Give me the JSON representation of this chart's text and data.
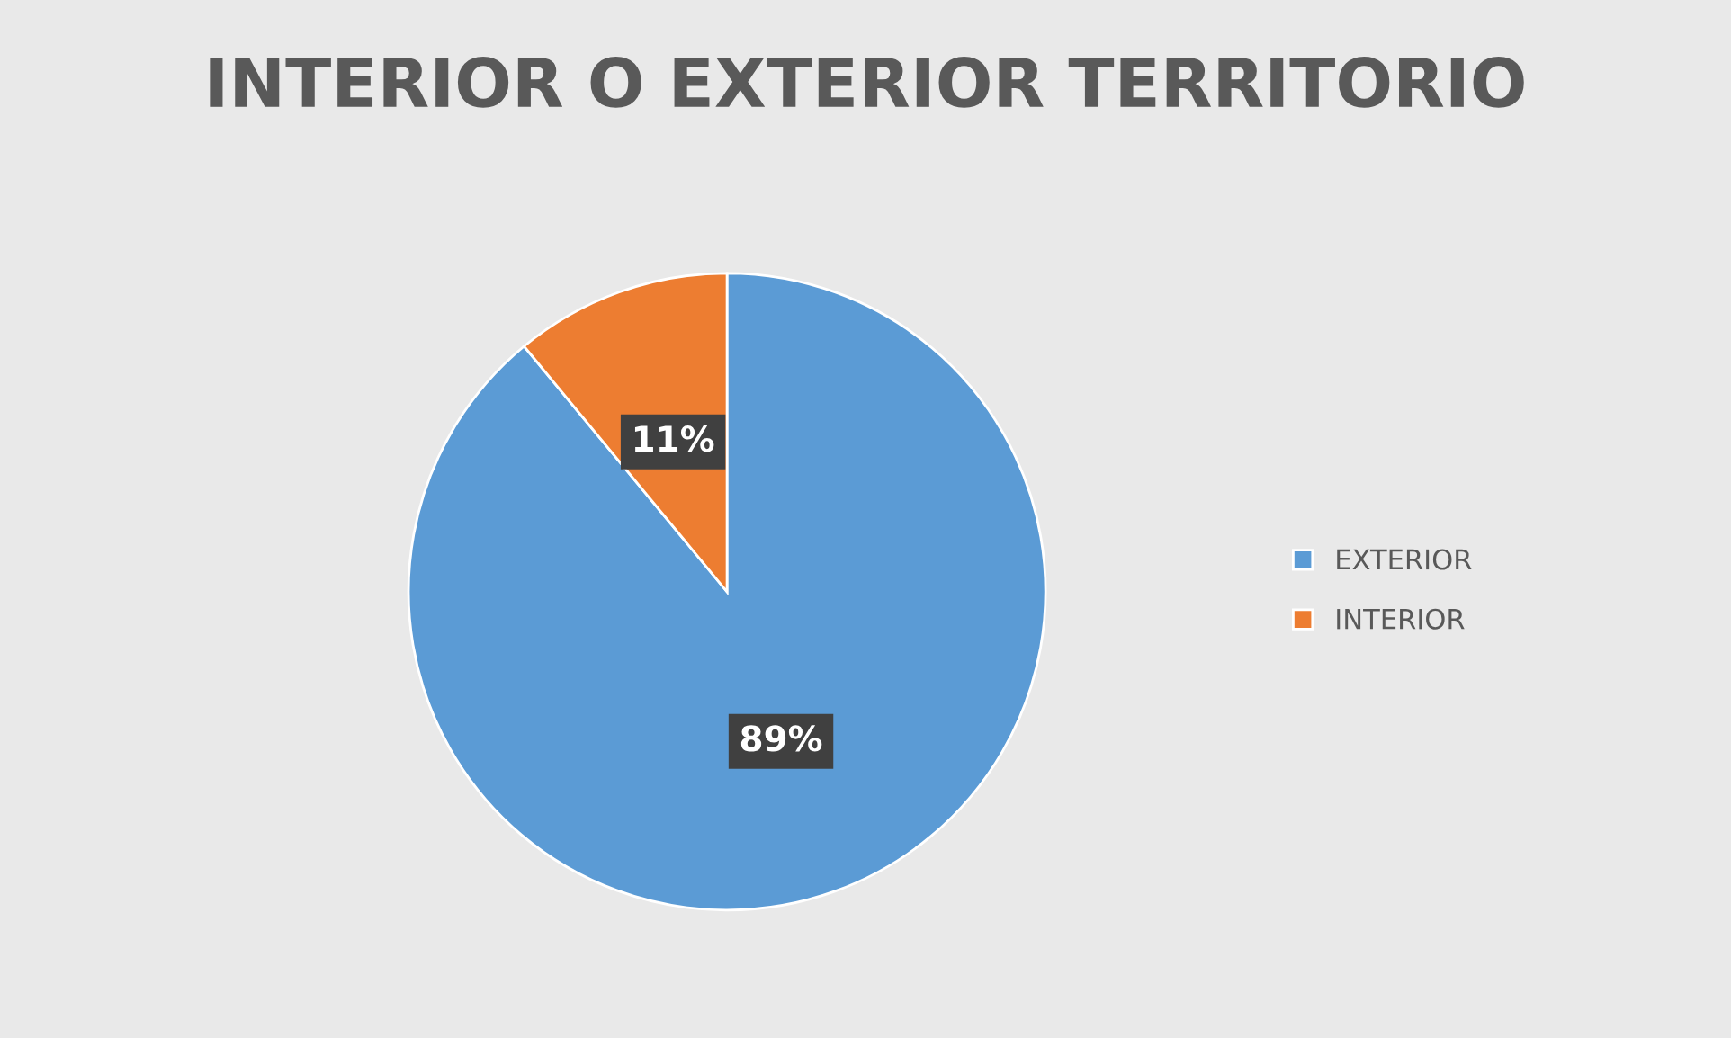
{
  "chart_data": {
    "type": "pie",
    "title": "INTERIOR O EXTERIOR TERRITORIO",
    "categories": [
      "EXTERIOR",
      "INTERIOR"
    ],
    "values": [
      89,
      11
    ],
    "colors": [
      "#5b9bd5",
      "#ed7d31"
    ],
    "value_labels": [
      "89%",
      "11%"
    ],
    "legend": "right"
  }
}
